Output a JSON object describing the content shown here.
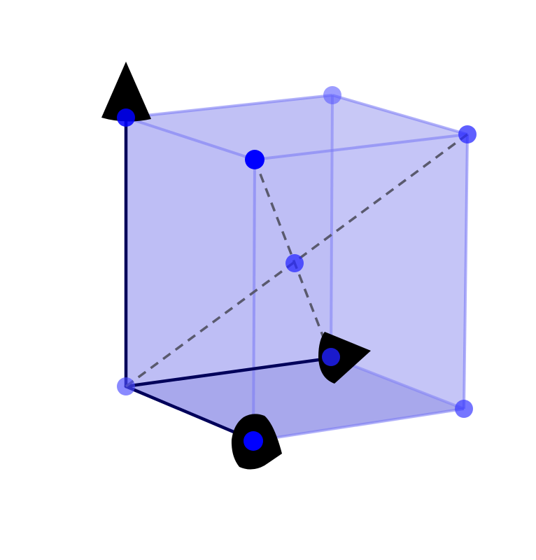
{
  "figure": {
    "type": "3d-cube-wireframe",
    "labels": []
  },
  "colors": {
    "face_fill": "#9b9bf0",
    "bottom_face_fill": "#6f6fd8",
    "edge": "#7d7df5",
    "axis": "#00005a",
    "vertex": "#0000ff",
    "diagonal": "#5a5a6e",
    "arrowhead": "#000000"
  },
  "icons": {
    "vertex": "vertex-dot",
    "center": "center-dot",
    "axis_arrowhead": "cone-arrowhead"
  }
}
